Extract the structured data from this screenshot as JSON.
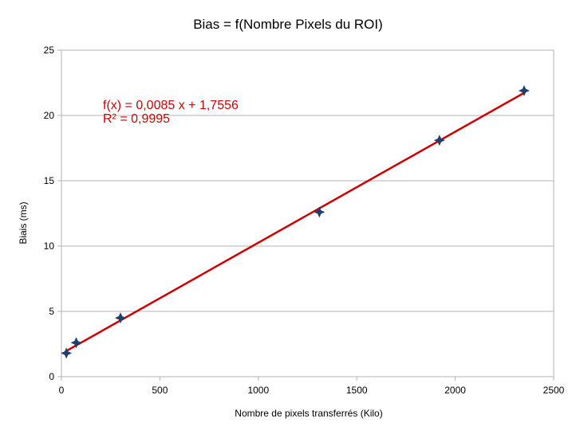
{
  "chart_data": {
    "type": "scatter",
    "title": "Bias = f(Nombre Pixels du ROI)",
    "xlabel": "Nombre de pixels transferrés (Kilo)",
    "ylabel": "Biais (ms)",
    "xlim": [
      0,
      2500
    ],
    "ylim": [
      0,
      25
    ],
    "xticks": [
      "0",
      "500",
      "1000",
      "1500",
      "2000",
      "2500"
    ],
    "yticks": [
      "0",
      "5",
      "10",
      "15",
      "20",
      "25"
    ],
    "grid": "horizontal",
    "series": [
      {
        "points": [
          {
            "x": 25,
            "y": 1.8
          },
          {
            "x": 75,
            "y": 2.6
          },
          {
            "x": 300,
            "y": 4.5
          },
          {
            "x": 1310,
            "y": 12.6
          },
          {
            "x": 1920,
            "y": 18.1
          },
          {
            "x": 2350,
            "y": 21.9
          }
        ],
        "color": "#1f3f6e"
      }
    ],
    "trendline": {
      "slope": 0.0085,
      "intercept": 1.7556,
      "x_range": [
        25,
        2350
      ],
      "color": "#cc0000",
      "equation": "f(x) = 0,0085 x + 1,7556",
      "r_squared": "R² = 0,9995"
    }
  }
}
